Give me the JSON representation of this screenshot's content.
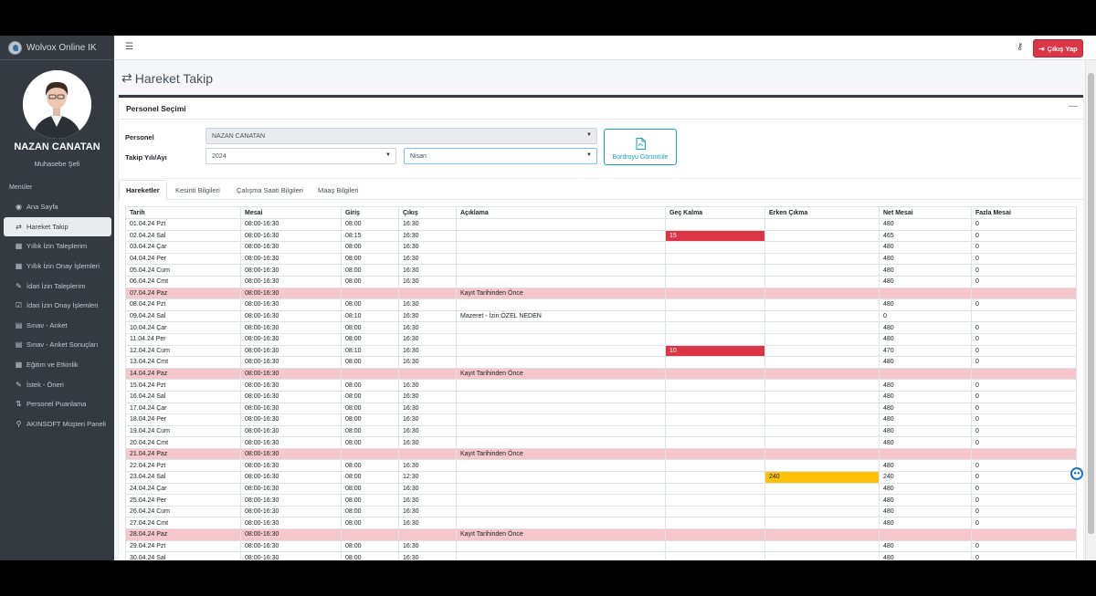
{
  "app": {
    "title": "Wolvox Online IK"
  },
  "user": {
    "name": "NAZAN CANATAN",
    "role": "Muhasebe Şefi"
  },
  "sidebar": {
    "header": "Menüler",
    "items": [
      {
        "label": "Ana Sayfa",
        "icon": "dashboard-icon",
        "glyph": "◉"
      },
      {
        "label": "Hareket Takip",
        "icon": "exchange-icon",
        "glyph": "⇄"
      },
      {
        "label": "Yıllık İzin Taleplerim",
        "icon": "calendar-icon",
        "glyph": "▦"
      },
      {
        "label": "Yıllık İzin Onay İşlemleri",
        "icon": "calendar-check-icon",
        "glyph": "▦"
      },
      {
        "label": "İdari İzin Taleplerim",
        "icon": "edit-icon",
        "glyph": "✎"
      },
      {
        "label": "İdari İzin Onay İşlemleri",
        "icon": "check-square-icon",
        "glyph": "☑"
      },
      {
        "label": "Sınav - Anket",
        "icon": "table-icon",
        "glyph": "▤"
      },
      {
        "label": "Sınav - Anket Sonuçları",
        "icon": "table-icon",
        "glyph": "▤"
      },
      {
        "label": "Eğitim ve Etkinlik",
        "icon": "calendar-icon",
        "glyph": "▦"
      },
      {
        "label": "İstek - Öneri",
        "icon": "edit-icon",
        "glyph": "✎"
      },
      {
        "label": "Personel Puanlama",
        "icon": "sort-icon",
        "glyph": "⇅"
      },
      {
        "label": "AKINSOFT Müşteri Paneli",
        "icon": "link-icon",
        "glyph": "⚲"
      }
    ]
  },
  "topbar": {
    "logout_label": "Çıkış Yap"
  },
  "page": {
    "title": "Hareket Takip"
  },
  "selection": {
    "title": "Personel Seçimi",
    "personel_label": "Personel",
    "personel_value": "NAZAN CANATAN",
    "period_label": "Takip Yılı/Ayı",
    "year_value": "2024",
    "month_value": "Nisan",
    "bordro_label": "Bordroyu Görüntüle"
  },
  "tabs": [
    "Hareketler",
    "Kesinti Bilgileri",
    "Çalışma Saati Bilgileri",
    "Maaş Bilgileri"
  ],
  "table": {
    "columns": [
      "Tarih",
      "Mesai",
      "Giriş",
      "Çıkış",
      "Açıklama",
      "Geç Kalma",
      "Erken Çıkma",
      "Net Mesai",
      "Fazla Mesai"
    ],
    "rows": [
      {
        "cells": [
          "01.04.24 Pzt",
          "08:00-16:30",
          "08:00",
          "16:30",
          "",
          "",
          "",
          "480",
          "0"
        ],
        "holiday": false
      },
      {
        "cells": [
          "02.04.24 Sal",
          "08:00-16:30",
          "08:15",
          "16:30",
          "",
          "15",
          "",
          "465",
          "0"
        ],
        "holiday": false
      },
      {
        "cells": [
          "03.04.24 Çar",
          "08:00-16:30",
          "08:00",
          "16:30",
          "",
          "",
          "",
          "480",
          "0"
        ],
        "holiday": false
      },
      {
        "cells": [
          "04.04.24 Per",
          "08:00-16:30",
          "08:00",
          "16:30",
          "",
          "",
          "",
          "480",
          "0"
        ],
        "holiday": false
      },
      {
        "cells": [
          "05.04.24 Cum",
          "08:00-16:30",
          "08:00",
          "16:30",
          "",
          "",
          "",
          "480",
          "0"
        ],
        "holiday": false
      },
      {
        "cells": [
          "06.04.24 Cmt",
          "08:00-16:30",
          "08:00",
          "16:30",
          "",
          "",
          "",
          "480",
          "0"
        ],
        "holiday": false
      },
      {
        "cells": [
          "07.04.24 Paz",
          "08:00-16:30",
          "",
          "",
          "Kayıt Tarihinden Önce",
          "",
          "",
          "",
          ""
        ],
        "holiday": true
      },
      {
        "cells": [
          "08.04.24 Pzt",
          "08:00-16:30",
          "08:00",
          "16:30",
          "",
          "",
          "",
          "480",
          "0"
        ],
        "holiday": false
      },
      {
        "cells": [
          "09.04.24 Sal",
          "08:00-16:30",
          "08:10",
          "16:30",
          "Mazeret - İzin:ÖZEL NEDEN",
          "",
          "",
          "0",
          ""
        ],
        "holiday": false
      },
      {
        "cells": [
          "10.04.24 Çar",
          "08:00-16:30",
          "08:00",
          "16:30",
          "",
          "",
          "",
          "480",
          "0"
        ],
        "holiday": false
      },
      {
        "cells": [
          "11.04.24 Per",
          "08:00-16:30",
          "08:00",
          "16:30",
          "",
          "",
          "",
          "480",
          "0"
        ],
        "holiday": false
      },
      {
        "cells": [
          "12.04.24 Cum",
          "08:00-16:30",
          "08:10",
          "16:30",
          "",
          "10",
          "",
          "470",
          "0"
        ],
        "holiday": false
      },
      {
        "cells": [
          "13.04.24 Cmt",
          "08:00-16:30",
          "08:00",
          "16:30",
          "",
          "",
          "",
          "480",
          "0"
        ],
        "holiday": false
      },
      {
        "cells": [
          "14.04.24 Paz",
          "08:00-16:30",
          "",
          "",
          "Kayıt Tarihinden Önce",
          "",
          "",
          "",
          ""
        ],
        "holiday": true
      },
      {
        "cells": [
          "15.04.24 Pzt",
          "08:00-16:30",
          "08:00",
          "16:30",
          "",
          "",
          "",
          "480",
          "0"
        ],
        "holiday": false
      },
      {
        "cells": [
          "16.04.24 Sal",
          "08:00-16:30",
          "08:00",
          "16:30",
          "",
          "",
          "",
          "480",
          "0"
        ],
        "holiday": false
      },
      {
        "cells": [
          "17.04.24 Çar",
          "08:00-16:30",
          "08:00",
          "16:30",
          "",
          "",
          "",
          "480",
          "0"
        ],
        "holiday": false
      },
      {
        "cells": [
          "18.04.24 Per",
          "08:00-16:30",
          "08:00",
          "16:30",
          "",
          "",
          "",
          "480",
          "0"
        ],
        "holiday": false
      },
      {
        "cells": [
          "19.04.24 Cum",
          "08:00-16:30",
          "08:00",
          "16:30",
          "",
          "",
          "",
          "480",
          "0"
        ],
        "holiday": false
      },
      {
        "cells": [
          "20.04.24 Cmt",
          "08:00-16:30",
          "08:00",
          "16:30",
          "",
          "",
          "",
          "480",
          "0"
        ],
        "holiday": false
      },
      {
        "cells": [
          "21.04.24 Paz",
          "08:00-16:30",
          "",
          "",
          "Kayıt Tarihinden Önce",
          "",
          "",
          "",
          ""
        ],
        "holiday": true
      },
      {
        "cells": [
          "22.04.24 Pzt",
          "08:00-16:30",
          "08:00",
          "16:30",
          "",
          "",
          "",
          "480",
          "0"
        ],
        "holiday": false
      },
      {
        "cells": [
          "23.04.24 Sal",
          "08:00-16:30",
          "08:00",
          "12:30",
          "",
          "",
          "240",
          "240",
          "0"
        ],
        "holiday": false
      },
      {
        "cells": [
          "24.04.24 Çar",
          "08:00-16:30",
          "08:00",
          "16:30",
          "",
          "",
          "",
          "480",
          "0"
        ],
        "holiday": false
      },
      {
        "cells": [
          "25.04.24 Per",
          "08:00-16:30",
          "08:00",
          "16:30",
          "",
          "",
          "",
          "480",
          "0"
        ],
        "holiday": false
      },
      {
        "cells": [
          "26.04.24 Cum",
          "08:00-16:30",
          "08:00",
          "16:30",
          "",
          "",
          "",
          "480",
          "0"
        ],
        "holiday": false
      },
      {
        "cells": [
          "27.04.24 Cmt",
          "08:00-16:30",
          "08:00",
          "16:30",
          "",
          "",
          "",
          "480",
          "0"
        ],
        "holiday": false
      },
      {
        "cells": [
          "28.04.24 Paz",
          "08:00-16:30",
          "",
          "",
          "Kayıt Tarihinden Önce",
          "",
          "",
          "",
          ""
        ],
        "holiday": true
      },
      {
        "cells": [
          "29.04.24 Pzt",
          "08:00-16:30",
          "08:00",
          "16:30",
          "",
          "",
          "",
          "480",
          "0"
        ],
        "holiday": false
      },
      {
        "cells": [
          "30.04.24 Sal",
          "08:00-16:30",
          "08:00",
          "16:30",
          "",
          "",
          "",
          "480",
          "0"
        ],
        "holiday": false
      }
    ]
  },
  "colors": {
    "late": "#dc3545",
    "early": "#ffc107",
    "holiday": "#f5c6cb",
    "sidebar": "#343a40"
  }
}
